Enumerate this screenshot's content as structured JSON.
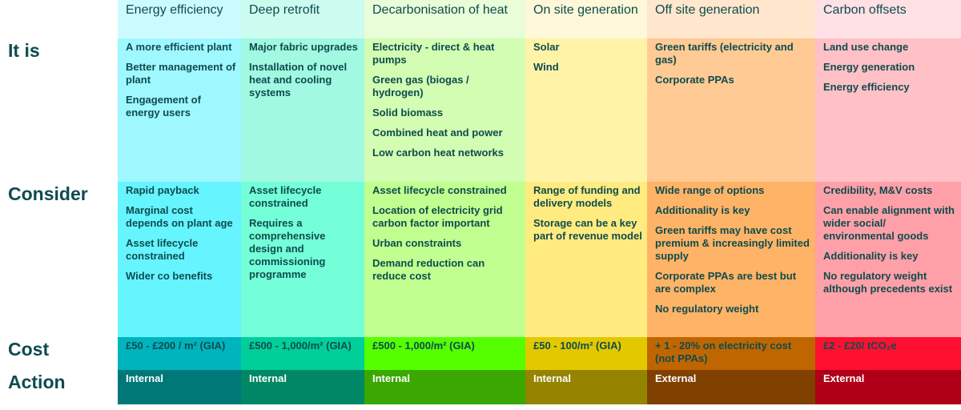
{
  "row_labels": [
    "It is",
    "Consider",
    "Cost",
    "Action"
  ],
  "columns": [
    {
      "title": "Energy efficiency",
      "it_is": [
        "A more efficient plant",
        "Better management of plant",
        "Engagement of energy users"
      ],
      "consider": [
        "Rapid payback",
        "Marginal cost depends on plant age",
        "Asset lifecycle constrained",
        "Wider co benefits"
      ],
      "cost": "£50 - £200 / m² (GIA)",
      "action": "Internal",
      "colors": [
        "#ccfbff",
        "#9ff8ff",
        "#66f4ff",
        "#00b4be",
        "#007878"
      ]
    },
    {
      "title": "Deep retrofit",
      "it_is": [
        "Major fabric upgrades",
        "Installation of novel heat and cooling systems"
      ],
      "consider": [
        "Asset lifecycle constrained",
        "Requires a comprehensive design and commissioning programme"
      ],
      "cost": "£500 - 1,000/m² (GIA)",
      "action": "Internal",
      "colors": [
        "#ccfcef",
        "#a0f9e0",
        "#74ffd8",
        "#00cf9a",
        "#008866"
      ]
    },
    {
      "title": "Decarbonisation of heat",
      "it_is": [
        "Electricity - direct & heat pumps",
        "Green gas (biogas / hydrogen)",
        "Solid biomass",
        "Combined heat and power",
        "Low carbon heat networks"
      ],
      "consider": [
        "Asset lifecycle constrained",
        "Location of electricity grid carbon factor important",
        "Urban constraints",
        "Demand reduction can reduce cost"
      ],
      "cost": "£500 - 1,000/m² (GIA)",
      "action": "Internal",
      "colors": [
        "#e8fdd8",
        "#d2fdb2",
        "#c0ff90",
        "#55ff00",
        "#3aa800"
      ]
    },
    {
      "title": "On site generation",
      "it_is": [
        "Solar",
        "Wind"
      ],
      "consider": [
        "Range of funding and delivery models",
        "Storage can be a key part of revenue model"
      ],
      "cost": "£50 - 100/m² (GIA)",
      "action": "Internal",
      "colors": [
        "#fff8d8",
        "#fff3a8",
        "#ffeb80",
        "#e3c800",
        "#948400"
      ]
    },
    {
      "title": "Off site generation",
      "it_is": [
        "Green tariffs (electricity and gas)",
        "Corporate PPAs"
      ],
      "consider": [
        "Wide range of options",
        "Additionality is key",
        "Green tariffs may have cost premium & increasingly limited supply",
        "Corporate PPAs are best but are complex",
        "No regulatory weight"
      ],
      "cost": "+ 1 - 20% on electricity cost (not PPAs)",
      "action": "External",
      "colors": [
        "#ffe6cc",
        "#ffca94",
        "#ffb366",
        "#c06600",
        "#804000"
      ]
    },
    {
      "title": "Carbon offsets",
      "it_is": [
        "Land use change",
        "Energy generation",
        "Energy efficiency"
      ],
      "consider": [
        "Credibility, M&V costs",
        "Can enable alignment with wider social/ environmental goods",
        "Additionality is key",
        "No regulatory weight although precedents exist"
      ],
      "cost": "£2 - £20/ tCO₂e",
      "action": "External",
      "colors": [
        "#ffe0e4",
        "#ffc0c6",
        "#ffa0a8",
        "#ff1030",
        "#b00018"
      ]
    }
  ]
}
